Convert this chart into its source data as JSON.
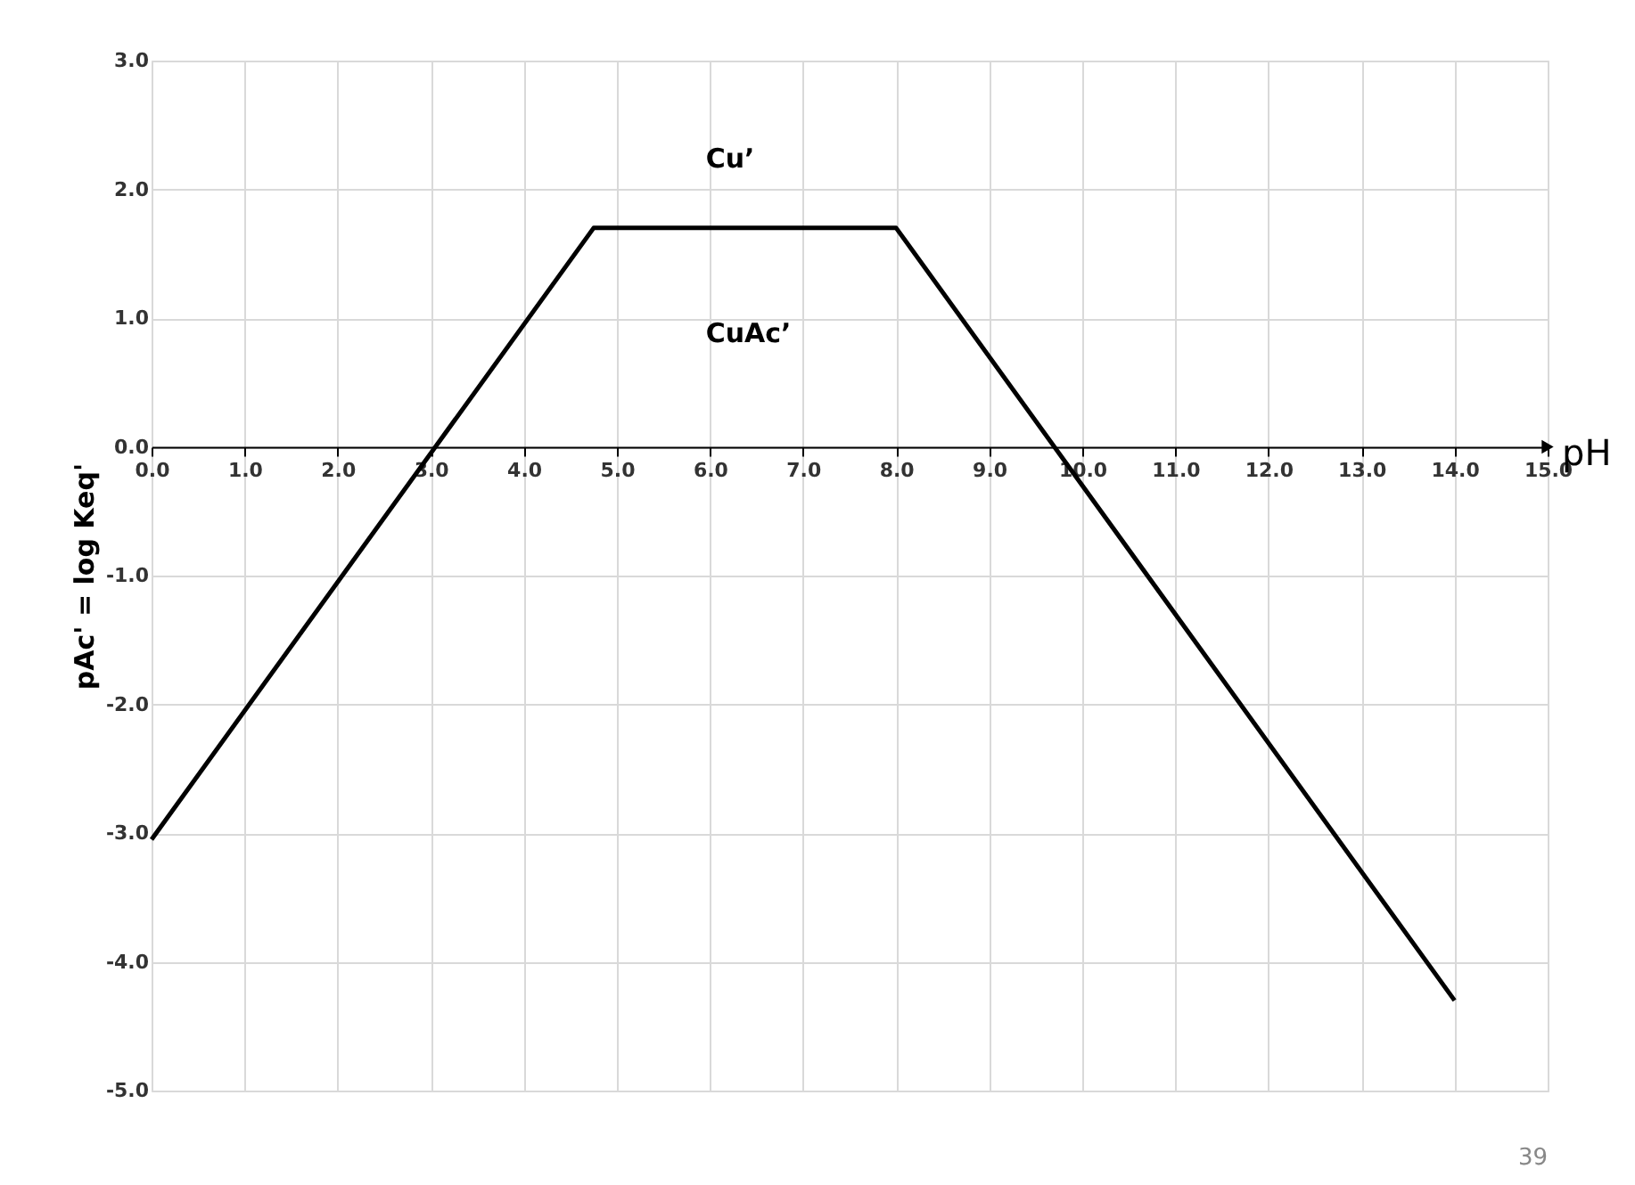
{
  "chart_data": {
    "type": "line",
    "xlabel": "pH",
    "ylabel": "pAc' = log Keq'",
    "x": [
      0,
      4.75,
      8,
      14
    ],
    "series": [
      {
        "color": "#000000",
        "values": [
          -3.05,
          1.7,
          1.7,
          -4.3
        ]
      }
    ],
    "xlim": [
      0,
      15
    ],
    "ylim": [
      -5,
      3
    ],
    "xticks": [
      {
        "value": 0,
        "label": "0.0"
      },
      {
        "value": 1,
        "label": "1.0"
      },
      {
        "value": 2,
        "label": "2.0"
      },
      {
        "value": 3,
        "label": "3.0"
      },
      {
        "value": 4,
        "label": "4.0"
      },
      {
        "value": 5,
        "label": "5.0"
      },
      {
        "value": 6,
        "label": "6.0"
      },
      {
        "value": 7,
        "label": "7.0"
      },
      {
        "value": 8,
        "label": "8.0"
      },
      {
        "value": 9,
        "label": "9.0"
      },
      {
        "value": 10,
        "label": "10.0"
      },
      {
        "value": 11,
        "label": "11.0"
      },
      {
        "value": 12,
        "label": "12.0"
      },
      {
        "value": 13,
        "label": "13.0"
      },
      {
        "value": 14,
        "label": "14.0"
      },
      {
        "value": 15,
        "label": "15.0"
      }
    ],
    "yticks": [
      {
        "value": -5,
        "label": "-5.0"
      },
      {
        "value": -4,
        "label": "-4.0"
      },
      {
        "value": -3,
        "label": "-3.0"
      },
      {
        "value": -2,
        "label": "-2.0"
      },
      {
        "value": -1,
        "label": "-1.0"
      },
      {
        "value": 0,
        "label": "0.0"
      },
      {
        "value": 1,
        "label": "1.0"
      },
      {
        "value": 2,
        "label": "2.0"
      },
      {
        "value": 3,
        "label": "3.0"
      }
    ],
    "annotations": [
      "Cu’",
      "CuAc’",
      "39"
    ],
    "grid": true,
    "marker": "none",
    "line_style": "solid"
  }
}
